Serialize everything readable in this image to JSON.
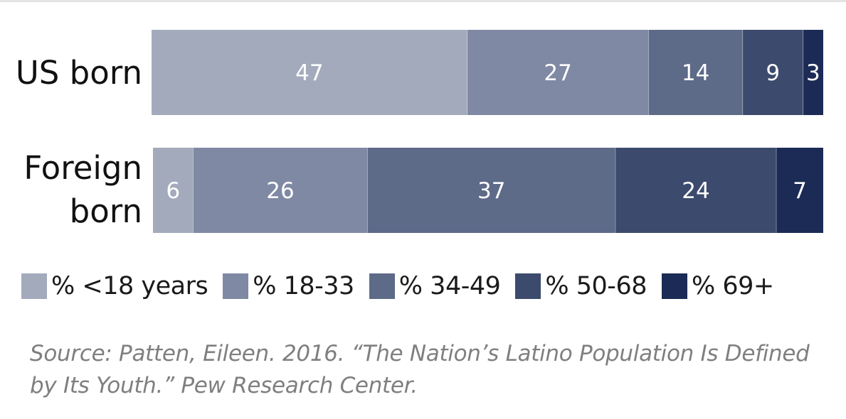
{
  "chart_data": {
    "type": "bar",
    "orientation": "horizontal",
    "stacked": true,
    "unit": "percent",
    "categories": [
      "US born",
      "Foreign born"
    ],
    "category_lines": [
      [
        "US born"
      ],
      [
        "Foreign",
        "born"
      ]
    ],
    "series": [
      {
        "name": "% <18 years",
        "color": "#a3aabb",
        "values": [
          47,
          6
        ]
      },
      {
        "name": "% 18-33",
        "color": "#7f89a3",
        "values": [
          27,
          26
        ]
      },
      {
        "name": "% 34-49",
        "color": "#5d6a88",
        "values": [
          14,
          37
        ]
      },
      {
        "name": "% 50-68",
        "color": "#3c4a6d",
        "values": [
          9,
          24
        ]
      },
      {
        "name": "% 69+",
        "color": "#1c2b55",
        "values": [
          3,
          7
        ]
      }
    ],
    "legend_position": "bottom",
    "xlim": [
      0,
      100
    ]
  },
  "source": {
    "line1": "Source: Patten, Eileen. 2016. “The Nation’s Latino Population Is Defined",
    "line2": "by Its Youth.” Pew Research Center."
  }
}
